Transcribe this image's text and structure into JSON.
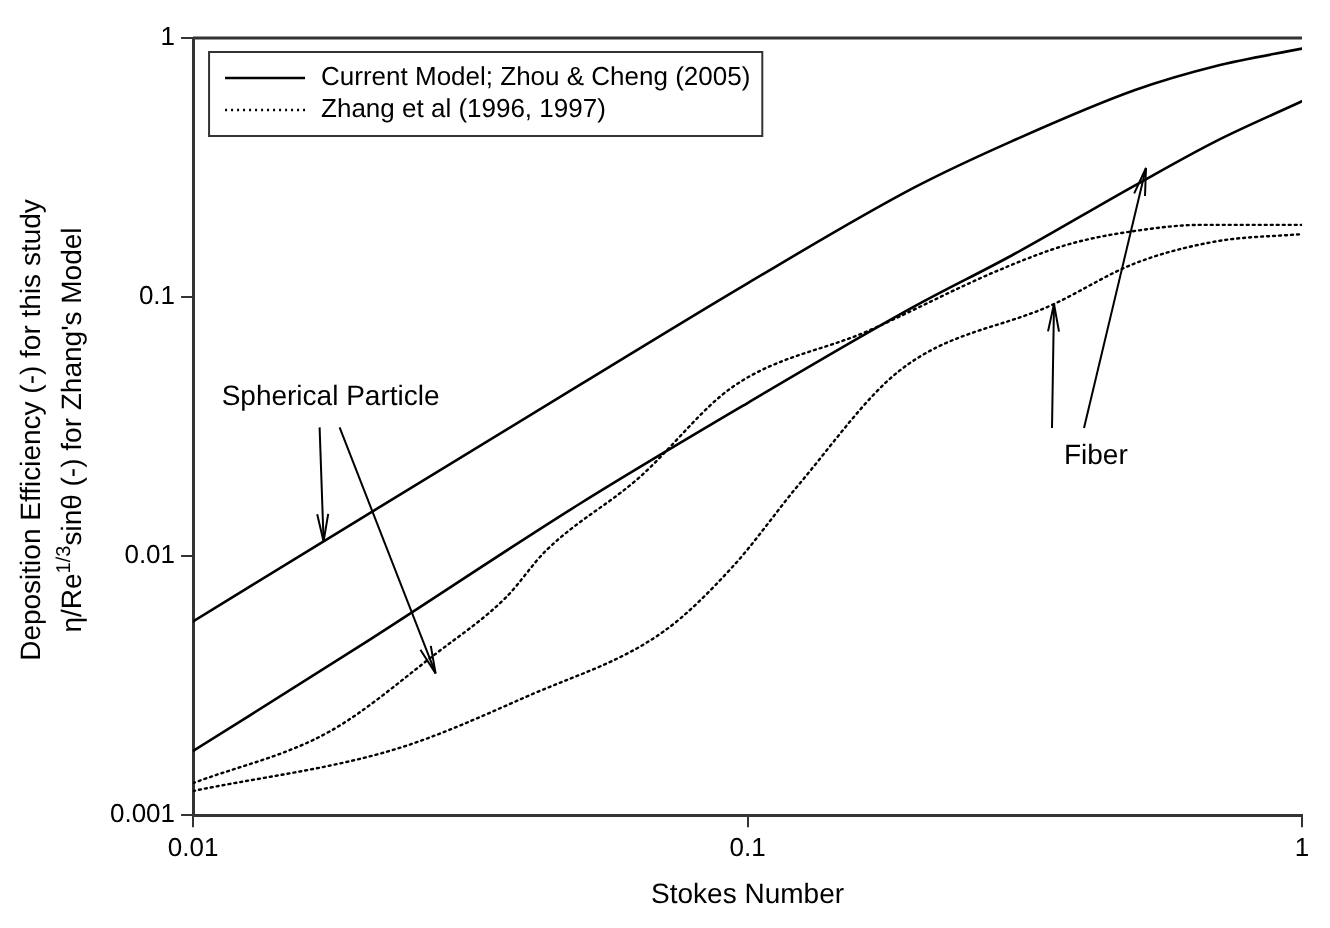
{
  "chart_data": {
    "type": "line",
    "xlabel": "Stokes Number",
    "ylabel": "Deposition Efficiency (-) for this study\nη/Re$^{1/3}$sinθ (-) for Zhang's Model",
    "log": "xy",
    "xlim": [
      0.01,
      1
    ],
    "ylim": [
      0.001,
      1
    ],
    "xticks": [
      0.01,
      0.1,
      1
    ],
    "yticks": [
      0.001,
      0.01,
      0.1,
      1
    ],
    "grid": false,
    "legend": "top left",
    "marker": "none",
    "series": [
      {
        "name": "Current Model; Zhou & Cheng (2005)",
        "color": "#000000",
        "line_style": "solid",
        "x": [
          0.01,
          0.02,
          0.05,
          0.1,
          0.2,
          0.3,
          0.5,
          0.7,
          1
        ],
        "values": [
          0.0056,
          0.0139,
          0.046,
          0.113,
          0.265,
          0.4,
          0.63,
          0.78,
          0.91
        ]
      },
      {
        "color": "#000000",
        "line_style": "solid",
        "x": [
          0.01,
          0.02,
          0.05,
          0.1,
          0.2,
          0.3,
          0.5,
          0.7,
          1
        ],
        "values": [
          0.00177,
          0.0045,
          0.016,
          0.039,
          0.092,
          0.145,
          0.27,
          0.4,
          0.57
        ]
      },
      {
        "name": "Zhang et al (1996, 1997)",
        "color": "#000000",
        "line_style": "dotted",
        "x": [
          0.01,
          0.0176,
          0.0274,
          0.0366,
          0.0433,
          0.0636,
          0.094,
          0.165,
          0.284,
          0.38,
          0.5,
          0.66,
          1
        ],
        "values": [
          0.00133,
          0.0021,
          0.0042,
          0.0069,
          0.0105,
          0.02,
          0.045,
          0.074,
          0.127,
          0.16,
          0.18,
          0.19,
          0.19
        ]
      },
      {
        "color": "#000000",
        "line_style": "dotted",
        "x": [
          0.01,
          0.0232,
          0.0404,
          0.0704,
          0.094,
          0.124,
          0.188,
          0.357,
          0.5,
          0.7,
          1
        ],
        "values": [
          0.00124,
          0.0018,
          0.0029,
          0.0051,
          0.0091,
          0.019,
          0.052,
          0.094,
          0.135,
          0.164,
          0.175
        ]
      }
    ],
    "annotations": [
      {
        "text": "Spherical Particle",
        "x": 0.0172,
        "y": 0.0114
      },
      {
        "text": "Fiber",
        "x": 0.357,
        "y": 0.094
      }
    ]
  }
}
